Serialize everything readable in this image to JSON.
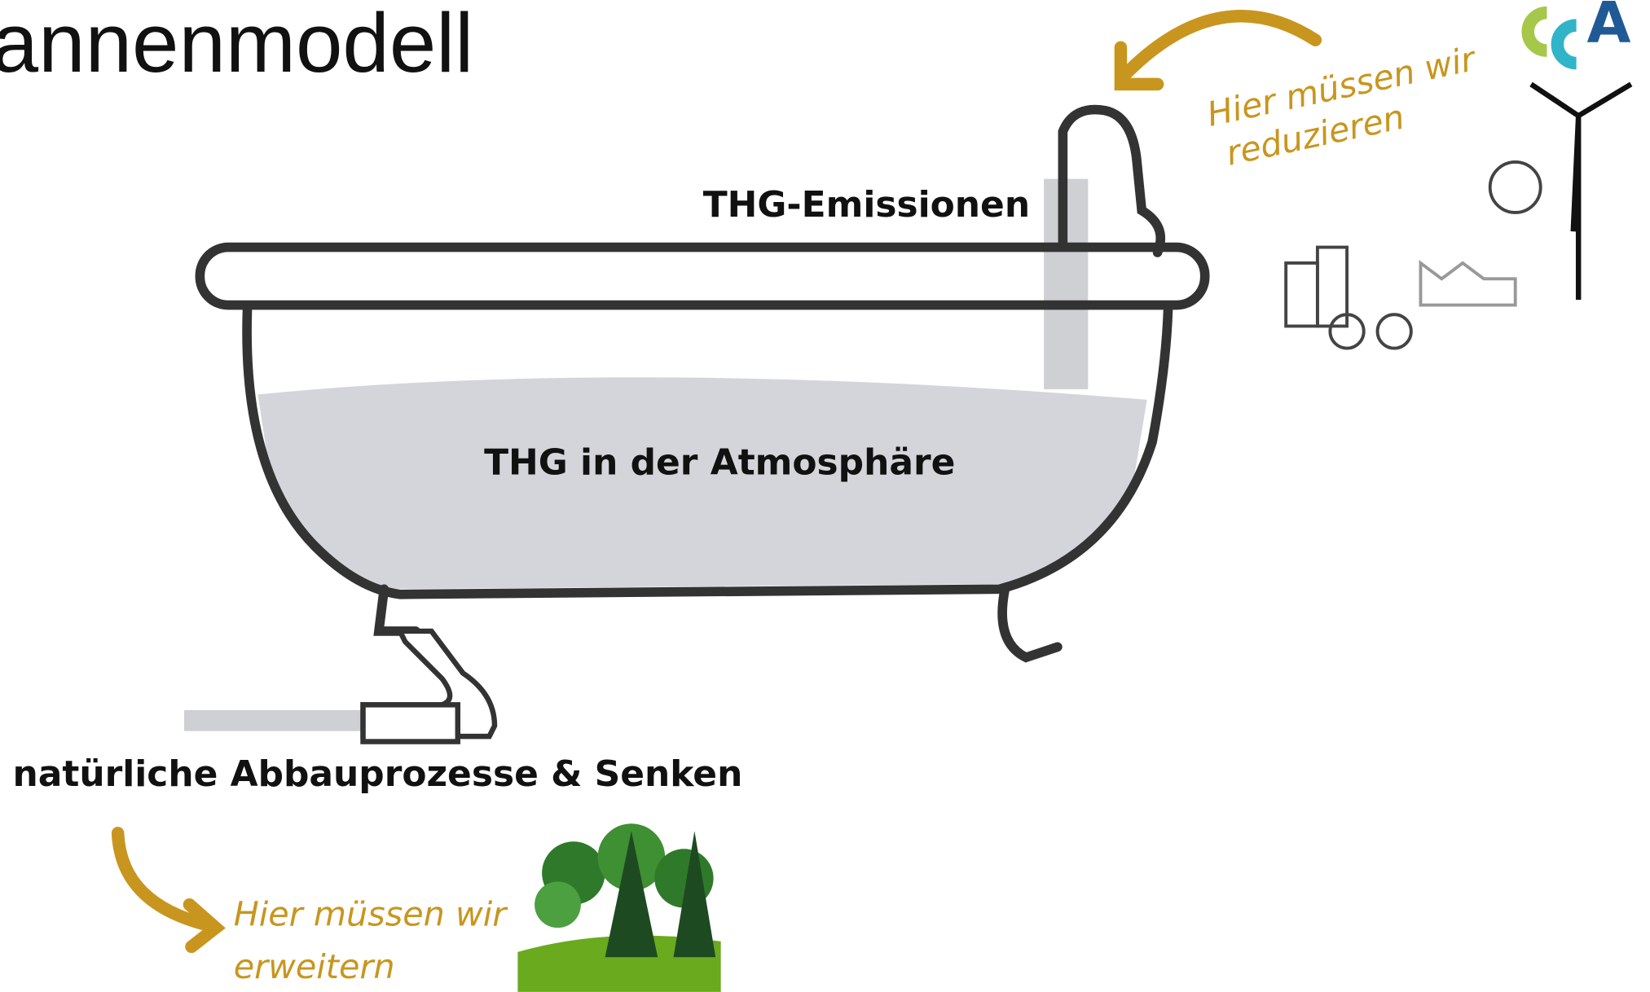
{
  "title": "annenmodell",
  "labels": {
    "emissions": "THG-Emissionen",
    "atmosphere": "THG in der Atmosphäre",
    "sinks": "natürliche Abbauprozesse & Senken"
  },
  "notes": {
    "reduce": [
      "Hier müssen wir",
      "reduzieren"
    ],
    "expand": [
      "Hier müssen wir",
      "erweitern"
    ]
  },
  "logo": "A"
}
